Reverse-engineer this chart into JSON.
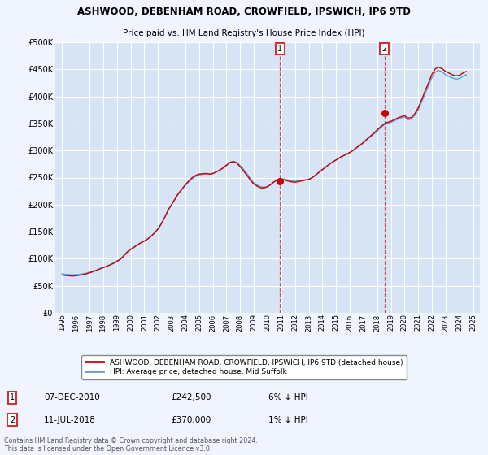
{
  "title_line1": "ASHWOOD, DEBENHAM ROAD, CROWFIELD, IPSWICH, IP6 9TD",
  "title_line2": "Price paid vs. HM Land Registry's House Price Index (HPI)",
  "bg_color": "#f0f4ff",
  "plot_bg_color": "#d6e4f5",
  "grid_color": "#ffffff",
  "yticks": [
    0,
    50000,
    100000,
    150000,
    200000,
    250000,
    300000,
    350000,
    400000,
    450000,
    500000
  ],
  "ytick_labels": [
    "£0",
    "£50K",
    "£100K",
    "£150K",
    "£200K",
    "£250K",
    "£300K",
    "£350K",
    "£400K",
    "£450K",
    "£500K"
  ],
  "xmin": 1994.5,
  "xmax": 2025.5,
  "ymin": 0,
  "ymax": 500000,
  "marker1_x": 2010.92,
  "marker1_y": 242500,
  "marker2_x": 2018.53,
  "marker2_y": 370000,
  "red_color": "#cc0000",
  "blue_color": "#6699cc",
  "box_color": "#cc3333",
  "legend_label_red": "ASHWOOD, DEBENHAM ROAD, CROWFIELD, IPSWICH, IP6 9TD (detached house)",
  "legend_label_blue": "HPI: Average price, detached house, Mid Suffolk",
  "table_row1": [
    "1",
    "07-DEC-2010",
    "£242,500",
    "6% ↓ HPI"
  ],
  "table_row2": [
    "2",
    "11-JUL-2018",
    "£370,000",
    "1% ↓ HPI"
  ],
  "footer": "Contains HM Land Registry data © Crown copyright and database right 2024.\nThis data is licensed under the Open Government Licence v3.0.",
  "hpi_data": {
    "years": [
      1995.0,
      1995.25,
      1995.5,
      1995.75,
      1996.0,
      1996.25,
      1996.5,
      1996.75,
      1997.0,
      1997.25,
      1997.5,
      1997.75,
      1998.0,
      1998.25,
      1998.5,
      1998.75,
      1999.0,
      1999.25,
      1999.5,
      1999.75,
      2000.0,
      2000.25,
      2000.5,
      2000.75,
      2001.0,
      2001.25,
      2001.5,
      2001.75,
      2002.0,
      2002.25,
      2002.5,
      2002.75,
      2003.0,
      2003.25,
      2003.5,
      2003.75,
      2004.0,
      2004.25,
      2004.5,
      2004.75,
      2005.0,
      2005.25,
      2005.5,
      2005.75,
      2006.0,
      2006.25,
      2006.5,
      2006.75,
      2007.0,
      2007.25,
      2007.5,
      2007.75,
      2008.0,
      2008.25,
      2008.5,
      2008.75,
      2009.0,
      2009.25,
      2009.5,
      2009.75,
      2010.0,
      2010.25,
      2010.5,
      2010.75,
      2011.0,
      2011.25,
      2011.5,
      2011.75,
      2012.0,
      2012.25,
      2012.5,
      2012.75,
      2013.0,
      2013.25,
      2013.5,
      2013.75,
      2014.0,
      2014.25,
      2014.5,
      2014.75,
      2015.0,
      2015.25,
      2015.5,
      2015.75,
      2016.0,
      2016.25,
      2016.5,
      2016.75,
      2017.0,
      2017.25,
      2017.5,
      2017.75,
      2018.0,
      2018.25,
      2018.5,
      2018.75,
      2019.0,
      2019.25,
      2019.5,
      2019.75,
      2020.0,
      2020.25,
      2020.5,
      2020.75,
      2021.0,
      2021.25,
      2021.5,
      2021.75,
      2022.0,
      2022.25,
      2022.5,
      2022.75,
      2023.0,
      2023.25,
      2023.5,
      2023.75,
      2024.0,
      2024.25,
      2024.5
    ],
    "values": [
      72000,
      71000,
      70500,
      70000,
      70500,
      71000,
      72000,
      73000,
      75000,
      77000,
      79000,
      82000,
      84000,
      86000,
      89000,
      92000,
      96000,
      100000,
      106000,
      113000,
      118000,
      122000,
      126000,
      130000,
      133000,
      137000,
      142000,
      148000,
      155000,
      165000,
      177000,
      190000,
      200000,
      210000,
      220000,
      228000,
      235000,
      242000,
      248000,
      252000,
      255000,
      256000,
      257000,
      256000,
      257000,
      260000,
      263000,
      267000,
      272000,
      278000,
      280000,
      278000,
      272000,
      265000,
      257000,
      248000,
      240000,
      236000,
      233000,
      232000,
      234000,
      238000,
      243000,
      247000,
      248000,
      247000,
      245000,
      244000,
      243000,
      244000,
      245000,
      246000,
      247000,
      250000,
      255000,
      260000,
      265000,
      270000,
      275000,
      279000,
      283000,
      287000,
      290000,
      293000,
      296000,
      300000,
      305000,
      309000,
      314000,
      320000,
      325000,
      330000,
      336000,
      342000,
      347000,
      350000,
      352000,
      355000,
      358000,
      360000,
      362000,
      357000,
      358000,
      365000,
      375000,
      390000,
      405000,
      420000,
      435000,
      445000,
      448000,
      445000,
      440000,
      437000,
      434000,
      432000,
      433000,
      437000,
      440000
    ]
  },
  "price_data": {
    "years": [
      1995.0,
      1995.25,
      1995.5,
      1995.75,
      1996.0,
      1996.25,
      1996.5,
      1996.75,
      1997.0,
      1997.25,
      1997.5,
      1997.75,
      1998.0,
      1998.25,
      1998.5,
      1998.75,
      1999.0,
      1999.25,
      1999.5,
      1999.75,
      2000.0,
      2000.25,
      2000.5,
      2000.75,
      2001.0,
      2001.25,
      2001.5,
      2001.75,
      2002.0,
      2002.25,
      2002.5,
      2002.75,
      2003.0,
      2003.25,
      2003.5,
      2003.75,
      2004.0,
      2004.25,
      2004.5,
      2004.75,
      2005.0,
      2005.25,
      2005.5,
      2005.75,
      2006.0,
      2006.25,
      2006.5,
      2006.75,
      2007.0,
      2007.25,
      2007.5,
      2007.75,
      2008.0,
      2008.25,
      2008.5,
      2008.75,
      2009.0,
      2009.25,
      2009.5,
      2009.75,
      2010.0,
      2010.25,
      2010.5,
      2010.75,
      2011.0,
      2011.25,
      2011.5,
      2011.75,
      2012.0,
      2012.25,
      2012.5,
      2012.75,
      2013.0,
      2013.25,
      2013.5,
      2013.75,
      2014.0,
      2014.25,
      2014.5,
      2014.75,
      2015.0,
      2015.25,
      2015.5,
      2015.75,
      2016.0,
      2016.25,
      2016.5,
      2016.75,
      2017.0,
      2017.25,
      2017.5,
      2017.75,
      2018.0,
      2018.25,
      2018.5,
      2018.75,
      2019.0,
      2019.25,
      2019.5,
      2019.75,
      2020.0,
      2020.25,
      2020.5,
      2020.75,
      2021.0,
      2021.25,
      2021.5,
      2021.75,
      2022.0,
      2022.25,
      2022.5,
      2022.75,
      2023.0,
      2023.25,
      2023.5,
      2023.75,
      2024.0,
      2024.25,
      2024.5
    ],
    "values": [
      70000,
      69000,
      68500,
      68000,
      68500,
      69500,
      70500,
      72000,
      74000,
      76000,
      78500,
      81000,
      83500,
      86000,
      88500,
      91500,
      95000,
      99000,
      105000,
      112000,
      117000,
      121000,
      125500,
      129500,
      132500,
      136500,
      141500,
      148000,
      155000,
      165000,
      177000,
      190500,
      200500,
      211000,
      221000,
      229000,
      237000,
      244000,
      250000,
      254000,
      256500,
      257000,
      257500,
      256500,
      257500,
      260500,
      264000,
      268000,
      273000,
      278000,
      279500,
      277000,
      270000,
      262000,
      254000,
      245000,
      238000,
      234000,
      231000,
      231000,
      233000,
      237500,
      242500,
      246500,
      247000,
      245500,
      243500,
      242000,
      241500,
      242500,
      244000,
      245500,
      246500,
      249500,
      254500,
      259500,
      264500,
      269500,
      274500,
      278500,
      282500,
      286500,
      290000,
      293000,
      296500,
      300500,
      305500,
      310000,
      315000,
      321000,
      326500,
      332000,
      338000,
      344000,
      349000,
      352000,
      354000,
      357000,
      360000,
      362500,
      364500,
      360000,
      361000,
      368000,
      379000,
      394000,
      410000,
      425000,
      441000,
      451000,
      454000,
      451000,
      446000,
      443000,
      440000,
      438000,
      439000,
      443000,
      446000
    ]
  }
}
